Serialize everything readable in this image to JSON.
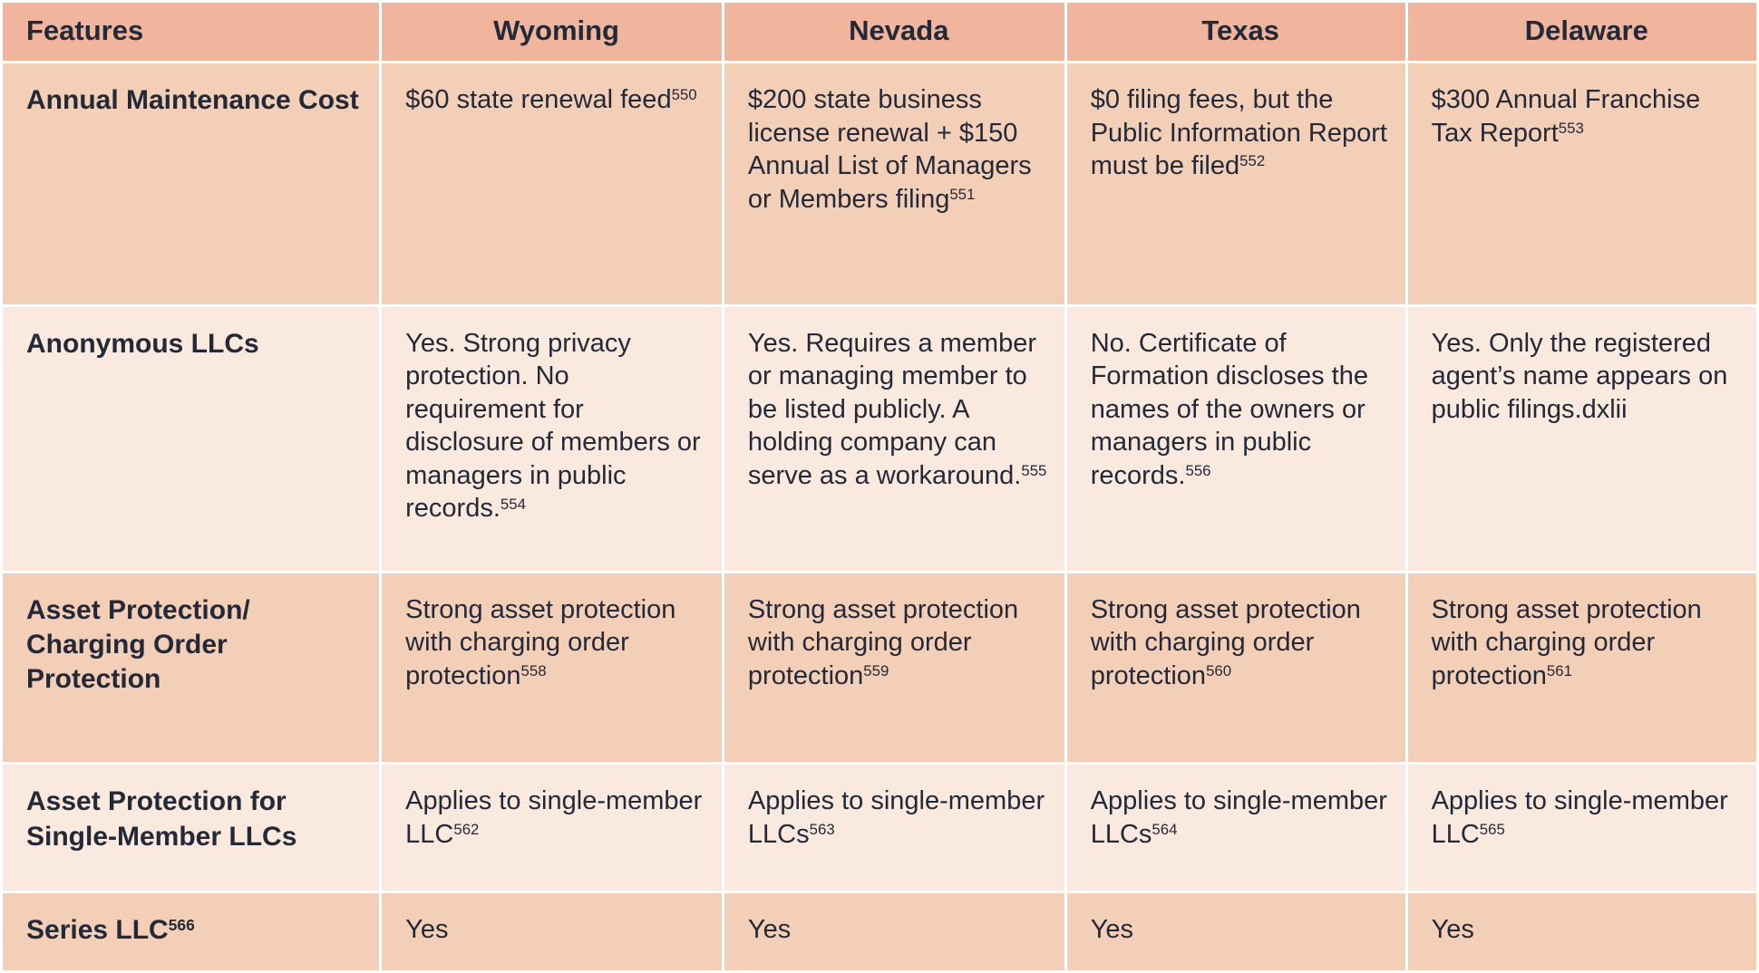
{
  "colors": {
    "header_bg": "#f0b59c",
    "row_odd_bg": "#f4cfb8",
    "row_even_bg": "#fae9de",
    "divider_color": "#ffffff",
    "text_color": "#242938"
  },
  "table": {
    "columns": [
      "Features",
      "Wyoming",
      "Nevada",
      "Texas",
      "Delaware"
    ],
    "rows": [
      {
        "feature": "Annual Maintenance Cost",
        "cells": [
          "$60 state renewal feed^550",
          "$200 state business license renewal + $150 Annual List of Managers or Members filing^551",
          "$0 filing fees, but the Public Information Report must be filed^552",
          "$300 Annual Franchise Tax Report^553"
        ]
      },
      {
        "feature": "Anonymous LLCs",
        "cells": [
          "Yes. Strong privacy protection. No requirement for disclosure of members or managers in public records.^554",
          "Yes. Requires a member or managing member to be listed publicly. A holding company can serve as a workaround.^555",
          "No. Certificate of Formation discloses the names of the owners or managers in public records.^556",
          "Yes. Only the registered agent’s name appears on public filings.dxlii"
        ]
      },
      {
        "feature": "Asset Protection/ Charging Order Protection",
        "cells": [
          "Strong asset protection with charging order protection^558",
          "Strong asset protection with charging order protection^559",
          "Strong asset protection with charging order protection^560",
          "Strong asset protection with charging order protection^561"
        ]
      },
      {
        "feature": "Asset Protection for Single-Member LLCs",
        "cells": [
          "Applies to single-member LLC^562",
          "Applies to single-member LLCs^563",
          "Applies to single-member LLCs^564",
          "Applies to single-member LLC^565"
        ]
      },
      {
        "feature": "Series LLC^566",
        "cells": [
          "Yes",
          "Yes",
          "Yes",
          "Yes"
        ]
      }
    ]
  }
}
